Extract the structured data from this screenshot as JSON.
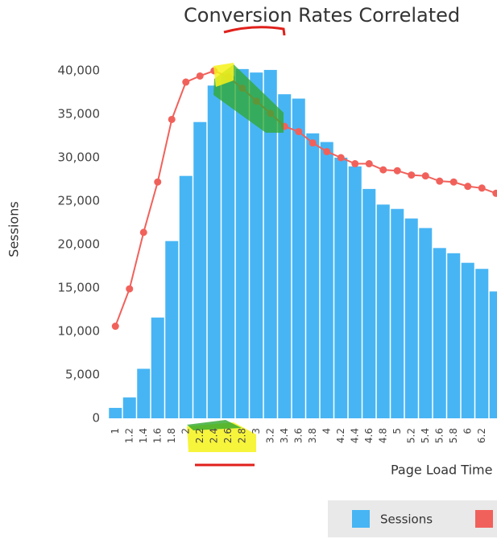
{
  "chart_data": {
    "type": "bar-line",
    "title": "Conversion Rates Correlated",
    "x_label": "Page Load Time",
    "y_label": "Sessions",
    "categories": [
      "1",
      "1.2",
      "1.4",
      "1.6",
      "1.8",
      "2",
      "2.2",
      "2.4",
      "2.6",
      "2.8",
      "3",
      "3.2",
      "3.4",
      "3.6",
      "3.8",
      "4",
      "4.2",
      "4.4",
      "4.6",
      "4.8",
      "5",
      "5.2",
      "5.4",
      "5.6",
      "5.8",
      "6",
      "6.2",
      null
    ],
    "series": [
      {
        "name": "Sessions",
        "type": "bar",
        "color": "#47b5f4",
        "values": [
          1200,
          2400,
          5700,
          11600,
          20400,
          27900,
          34100,
          38300,
          39400,
          40200,
          39800,
          40100,
          37300,
          36800,
          32800,
          31800,
          30000,
          29000,
          26400,
          24600,
          24100,
          23000,
          21900,
          19600,
          19000,
          17900,
          17200,
          14600
        ]
      },
      {
        "type": "line",
        "color": "#f1615b",
        "values": [
          10600,
          14900,
          21400,
          27200,
          34400,
          38700,
          39400,
          40000,
          39300,
          38000,
          36500,
          35100,
          33600,
          33000,
          31700,
          30700,
          30000,
          29300,
          29300,
          28600,
          28500,
          28000,
          27900,
          27300,
          27200,
          26700,
          26500,
          25900
        ]
      }
    ],
    "ylim": [
      0,
      40000
    ],
    "yticks": [
      0,
      {
        "value": 5000,
        "label": "5,000"
      },
      {
        "value": 10000,
        "label": "10,000"
      },
      {
        "value": 15000,
        "label": "15,000"
      },
      {
        "value": 20000,
        "label": "20,000"
      },
      {
        "value": 25000,
        "label": "25,000"
      },
      {
        "value": 30000,
        "label": "30,000"
      },
      {
        "value": 35000,
        "label": "35,000"
      },
      {
        "value": 40000,
        "label": "40,000"
      }
    ],
    "legend": "bottom-right"
  }
}
